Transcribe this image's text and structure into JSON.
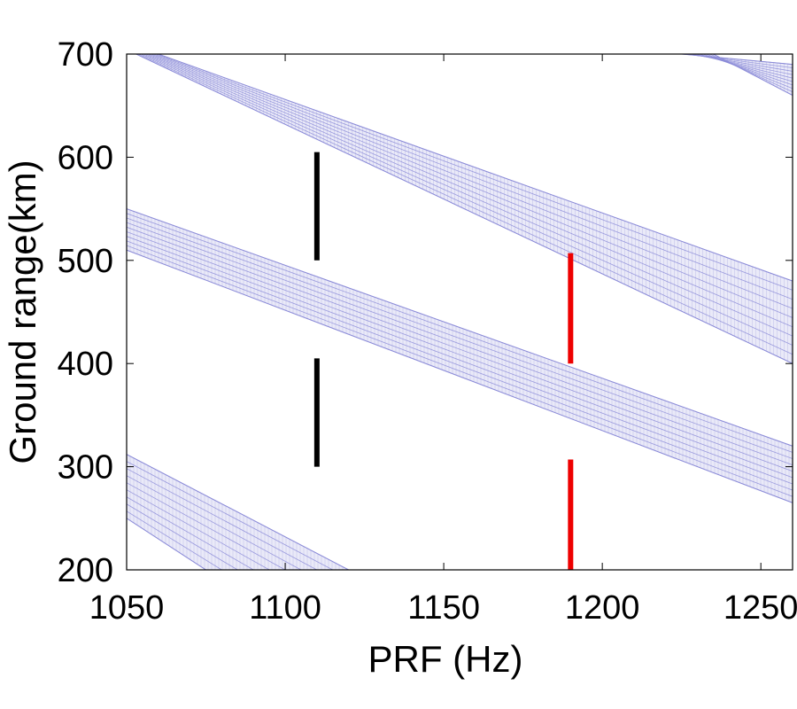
{
  "chart_data": {
    "type": "area",
    "title": "",
    "xlabel": "PRF (Hz)",
    "ylabel": "Ground range(km)",
    "xlim": [
      1050,
      1260
    ],
    "ylim": [
      200,
      700
    ],
    "xticks": [
      1050,
      1100,
      1150,
      1200,
      1250
    ],
    "yticks": [
      200,
      300,
      400,
      500,
      600,
      700
    ],
    "xtick_labels": [
      "1050",
      "1100",
      "1150",
      "1200",
      "1250"
    ],
    "ytick_labels": [
      "200",
      "300",
      "400",
      "500",
      "600",
      "700"
    ],
    "grid": false,
    "legend": "none",
    "band_color": "#8c8cd8",
    "bands": [
      {
        "upper": [
          [
            1060,
            700
          ],
          [
            1260,
            480
          ]
        ],
        "lower": [
          [
            1053,
            700
          ],
          [
            1260,
            400
          ]
        ]
      },
      {
        "upper": [
          [
            1050,
            550
          ],
          [
            1260,
            320
          ]
        ],
        "lower": [
          [
            1050,
            510
          ],
          [
            1260,
            265
          ]
        ]
      },
      {
        "upper": [
          [
            1050,
            312
          ],
          [
            1120,
            200
          ]
        ],
        "lower": [
          [
            1050,
            250
          ],
          [
            1075,
            200
          ]
        ]
      },
      {
        "upper": [
          [
            1225,
            700
          ],
          [
            1260,
            690
          ]
        ],
        "lower": [
          [
            1235,
            700
          ],
          [
            1260,
            660
          ]
        ]
      }
    ],
    "segments": [
      {
        "color": "#000000",
        "x": 1110,
        "y": [
          500,
          605
        ]
      },
      {
        "color": "#000000",
        "x": 1110,
        "y": [
          300,
          405
        ]
      },
      {
        "color": "#ee0000",
        "x": 1190,
        "y": [
          400,
          507
        ]
      },
      {
        "color": "#ee0000",
        "x": 1190,
        "y": [
          200,
          307
        ]
      }
    ]
  }
}
